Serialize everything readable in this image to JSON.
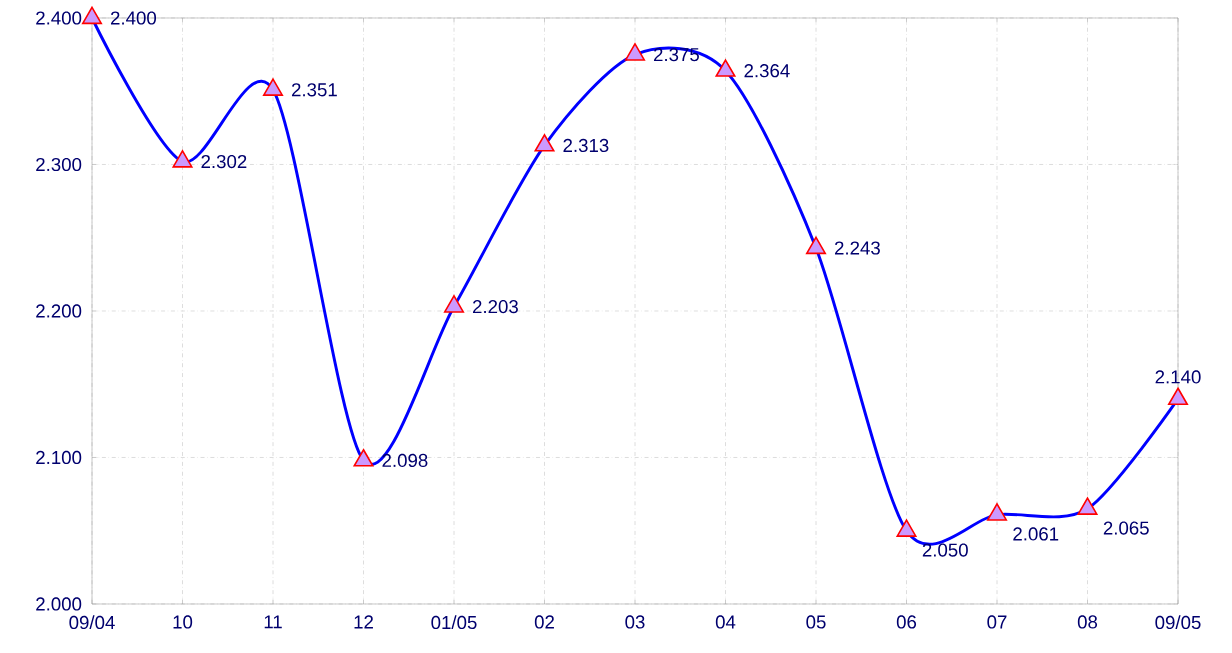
{
  "chart_data": {
    "type": "line",
    "categories": [
      "09/04",
      "10",
      "11",
      "12",
      "01/05",
      "02",
      "03",
      "04",
      "05",
      "06",
      "07",
      "08",
      "09/05"
    ],
    "series": [
      {
        "color": "#0000ff",
        "values": [
          2.4,
          2.302,
          2.351,
          2.098,
          2.203,
          2.313,
          2.375,
          2.364,
          2.243,
          2.05,
          2.061,
          2.065,
          2.14
        ],
        "value_labels": [
          "2.400",
          "2.302",
          "2.351",
          "2.098",
          "2.203",
          "2.313",
          "2.375",
          "2.364",
          "2.243",
          "2.050",
          "2.061",
          "2.065",
          "2.140"
        ]
      }
    ],
    "ylim": [
      2.0,
      2.4
    ],
    "yticks": [
      {
        "value": 2.0,
        "label": "2.000"
      },
      {
        "value": 2.1,
        "label": "2.100"
      },
      {
        "value": 2.2,
        "label": "2.200"
      },
      {
        "value": 2.3,
        "label": "2.300"
      },
      {
        "value": 2.4,
        "label": "2.400"
      }
    ],
    "grid": true,
    "marker": "triangle",
    "line_style": "solid"
  }
}
